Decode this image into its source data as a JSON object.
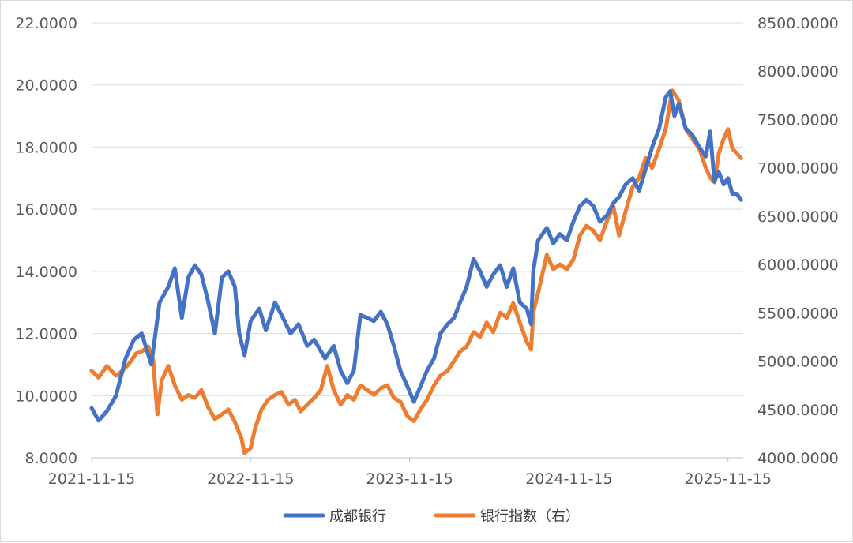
{
  "chart_data": {
    "type": "line",
    "title": "",
    "x_ticks": [
      "2021-11-15",
      "2022-11-15",
      "2023-11-15",
      "2024-11-15",
      "2025-11-15"
    ],
    "x_range": [
      "2021-11-15",
      "2025-12-20"
    ],
    "y_left": {
      "ticks": [
        "8.0000",
        "10.0000",
        "12.0000",
        "14.0000",
        "16.0000",
        "18.0000",
        "20.0000",
        "22.0000"
      ],
      "range": [
        8,
        22
      ]
    },
    "y_right": {
      "ticks": [
        "4000.0000",
        "4500.0000",
        "5000.0000",
        "5500.0000",
        "6000.0000",
        "6500.0000",
        "7000.0000",
        "7500.0000",
        "8000.0000",
        "8500.0000"
      ],
      "range": [
        4000,
        8500
      ]
    },
    "grid": "horizontal",
    "legend_position": "bottom",
    "series": [
      {
        "name": "成都银行",
        "axis": "left",
        "color": "#4472C4",
        "points": [
          [
            "2021-11-15",
            9.6
          ],
          [
            "2021-12-01",
            9.2
          ],
          [
            "2021-12-20",
            9.5
          ],
          [
            "2022-01-10",
            10.0
          ],
          [
            "2022-02-01",
            11.2
          ],
          [
            "2022-02-20",
            11.8
          ],
          [
            "2022-03-10",
            12.0
          ],
          [
            "2022-04-01",
            11.0
          ],
          [
            "2022-04-20",
            13.0
          ],
          [
            "2022-05-10",
            13.5
          ],
          [
            "2022-05-25",
            14.1
          ],
          [
            "2022-06-10",
            12.5
          ],
          [
            "2022-06-25",
            13.8
          ],
          [
            "2022-07-10",
            14.2
          ],
          [
            "2022-07-25",
            13.9
          ],
          [
            "2022-08-10",
            13.0
          ],
          [
            "2022-08-25",
            12.0
          ],
          [
            "2022-09-10",
            13.8
          ],
          [
            "2022-09-25",
            14.0
          ],
          [
            "2022-10-10",
            13.5
          ],
          [
            "2022-10-20",
            12.0
          ],
          [
            "2022-11-01",
            11.3
          ],
          [
            "2022-11-15",
            12.4
          ],
          [
            "2022-12-05",
            12.8
          ],
          [
            "2022-12-20",
            12.1
          ],
          [
            "2023-01-10",
            13.0
          ],
          [
            "2023-01-25",
            12.6
          ],
          [
            "2023-02-15",
            12.0
          ],
          [
            "2023-03-05",
            12.3
          ],
          [
            "2023-03-25",
            11.6
          ],
          [
            "2023-04-10",
            11.8
          ],
          [
            "2023-05-05",
            11.2
          ],
          [
            "2023-05-25",
            11.6
          ],
          [
            "2023-06-10",
            10.8
          ],
          [
            "2023-06-25",
            10.4
          ],
          [
            "2023-07-10",
            10.8
          ],
          [
            "2023-07-25",
            12.6
          ],
          [
            "2023-08-10",
            12.5
          ],
          [
            "2023-08-25",
            12.4
          ],
          [
            "2023-09-10",
            12.7
          ],
          [
            "2023-09-25",
            12.3
          ],
          [
            "2023-10-10",
            11.6
          ],
          [
            "2023-10-25",
            10.8
          ],
          [
            "2023-11-10",
            10.3
          ],
          [
            "2023-11-25",
            9.8
          ],
          [
            "2023-12-10",
            10.3
          ],
          [
            "2023-12-25",
            10.8
          ],
          [
            "2024-01-10",
            11.2
          ],
          [
            "2024-01-25",
            12.0
          ],
          [
            "2024-02-10",
            12.3
          ],
          [
            "2024-02-25",
            12.5
          ],
          [
            "2024-03-10",
            13.0
          ],
          [
            "2024-03-25",
            13.5
          ],
          [
            "2024-04-10",
            14.4
          ],
          [
            "2024-04-25",
            14.0
          ],
          [
            "2024-05-10",
            13.5
          ],
          [
            "2024-05-25",
            13.9
          ],
          [
            "2024-06-10",
            14.2
          ],
          [
            "2024-06-25",
            13.5
          ],
          [
            "2024-07-10",
            14.1
          ],
          [
            "2024-07-25",
            13.0
          ],
          [
            "2024-08-10",
            12.8
          ],
          [
            "2024-08-20",
            12.3
          ],
          [
            "2024-08-25",
            14.0
          ],
          [
            "2024-09-05",
            15.0
          ],
          [
            "2024-09-25",
            15.4
          ],
          [
            "2024-10-10",
            14.9
          ],
          [
            "2024-10-25",
            15.2
          ],
          [
            "2024-11-10",
            15.0
          ],
          [
            "2024-11-25",
            15.6
          ],
          [
            "2024-12-10",
            16.1
          ],
          [
            "2024-12-25",
            16.3
          ],
          [
            "2025-01-10",
            16.1
          ],
          [
            "2025-01-25",
            15.6
          ],
          [
            "2025-02-10",
            15.8
          ],
          [
            "2025-02-25",
            16.2
          ],
          [
            "2025-03-10",
            16.4
          ],
          [
            "2025-03-25",
            16.8
          ],
          [
            "2025-04-10",
            17.0
          ],
          [
            "2025-04-25",
            16.6
          ],
          [
            "2025-05-10",
            17.3
          ],
          [
            "2025-05-25",
            18.0
          ],
          [
            "2025-06-10",
            18.6
          ],
          [
            "2025-06-25",
            19.6
          ],
          [
            "2025-07-05",
            19.8
          ],
          [
            "2025-07-15",
            19.0
          ],
          [
            "2025-07-25",
            19.4
          ],
          [
            "2025-08-10",
            18.6
          ],
          [
            "2025-08-25",
            18.4
          ],
          [
            "2025-09-10",
            18.0
          ],
          [
            "2025-09-25",
            17.7
          ],
          [
            "2025-10-05",
            18.5
          ],
          [
            "2025-10-15",
            16.9
          ],
          [
            "2025-10-25",
            17.2
          ],
          [
            "2025-11-05",
            16.8
          ],
          [
            "2025-11-15",
            17.0
          ],
          [
            "2025-11-25",
            16.5
          ],
          [
            "2025-12-05",
            16.5
          ],
          [
            "2025-12-15",
            16.3
          ]
        ]
      },
      {
        "name": "银行指数（右）",
        "axis": "right",
        "color": "#ED7D31",
        "points": [
          [
            "2021-11-15",
            4900
          ],
          [
            "2021-12-01",
            4830
          ],
          [
            "2021-12-20",
            4950
          ],
          [
            "2022-01-10",
            4850
          ],
          [
            "2022-01-25",
            4900
          ],
          [
            "2022-02-10",
            4980
          ],
          [
            "2022-02-25",
            5080
          ],
          [
            "2022-03-10",
            5100
          ],
          [
            "2022-03-25",
            5150
          ],
          [
            "2022-04-05",
            5020
          ],
          [
            "2022-04-15",
            4450
          ],
          [
            "2022-04-25",
            4800
          ],
          [
            "2022-05-10",
            4950
          ],
          [
            "2022-05-25",
            4750
          ],
          [
            "2022-06-10",
            4600
          ],
          [
            "2022-06-25",
            4650
          ],
          [
            "2022-07-10",
            4620
          ],
          [
            "2022-07-25",
            4700
          ],
          [
            "2022-08-10",
            4520
          ],
          [
            "2022-08-25",
            4400
          ],
          [
            "2022-09-10",
            4450
          ],
          [
            "2022-09-25",
            4500
          ],
          [
            "2022-10-10",
            4370
          ],
          [
            "2022-10-25",
            4200
          ],
          [
            "2022-11-01",
            4050
          ],
          [
            "2022-11-15",
            4100
          ],
          [
            "2022-11-25",
            4300
          ],
          [
            "2022-12-10",
            4500
          ],
          [
            "2022-12-25",
            4600
          ],
          [
            "2023-01-10",
            4650
          ],
          [
            "2023-01-25",
            4680
          ],
          [
            "2023-02-10",
            4550
          ],
          [
            "2023-02-25",
            4600
          ],
          [
            "2023-03-10",
            4480
          ],
          [
            "2023-03-25",
            4550
          ],
          [
            "2023-04-10",
            4620
          ],
          [
            "2023-04-25",
            4700
          ],
          [
            "2023-05-10",
            4950
          ],
          [
            "2023-05-25",
            4700
          ],
          [
            "2023-06-10",
            4550
          ],
          [
            "2023-06-25",
            4650
          ],
          [
            "2023-07-10",
            4600
          ],
          [
            "2023-07-25",
            4750
          ],
          [
            "2023-08-10",
            4700
          ],
          [
            "2023-08-25",
            4650
          ],
          [
            "2023-09-10",
            4720
          ],
          [
            "2023-09-25",
            4750
          ],
          [
            "2023-10-10",
            4620
          ],
          [
            "2023-10-25",
            4580
          ],
          [
            "2023-11-10",
            4430
          ],
          [
            "2023-11-25",
            4380
          ],
          [
            "2023-12-10",
            4500
          ],
          [
            "2023-12-25",
            4600
          ],
          [
            "2024-01-10",
            4750
          ],
          [
            "2024-01-25",
            4850
          ],
          [
            "2024-02-10",
            4900
          ],
          [
            "2024-02-25",
            5000
          ],
          [
            "2024-03-10",
            5100
          ],
          [
            "2024-03-25",
            5150
          ],
          [
            "2024-04-10",
            5300
          ],
          [
            "2024-04-25",
            5250
          ],
          [
            "2024-05-10",
            5400
          ],
          [
            "2024-05-25",
            5300
          ],
          [
            "2024-06-10",
            5500
          ],
          [
            "2024-06-25",
            5450
          ],
          [
            "2024-07-10",
            5600
          ],
          [
            "2024-07-25",
            5400
          ],
          [
            "2024-08-10",
            5200
          ],
          [
            "2024-08-20",
            5120
          ],
          [
            "2024-08-25",
            5500
          ],
          [
            "2024-09-10",
            5800
          ],
          [
            "2024-09-25",
            6100
          ],
          [
            "2024-10-10",
            5950
          ],
          [
            "2024-10-25",
            6000
          ],
          [
            "2024-11-10",
            5950
          ],
          [
            "2024-11-25",
            6050
          ],
          [
            "2024-12-10",
            6300
          ],
          [
            "2024-12-25",
            6400
          ],
          [
            "2025-01-10",
            6350
          ],
          [
            "2025-01-25",
            6250
          ],
          [
            "2025-02-10",
            6450
          ],
          [
            "2025-02-25",
            6600
          ],
          [
            "2025-03-10",
            6300
          ],
          [
            "2025-03-25",
            6550
          ],
          [
            "2025-04-10",
            6800
          ],
          [
            "2025-04-25",
            6900
          ],
          [
            "2025-05-10",
            7100
          ],
          [
            "2025-05-25",
            7000
          ],
          [
            "2025-06-10",
            7200
          ],
          [
            "2025-06-25",
            7400
          ],
          [
            "2025-07-10",
            7800
          ],
          [
            "2025-07-25",
            7700
          ],
          [
            "2025-08-10",
            7400
          ],
          [
            "2025-08-25",
            7300
          ],
          [
            "2025-09-10",
            7200
          ],
          [
            "2025-09-25",
            7000
          ],
          [
            "2025-10-05",
            6900
          ],
          [
            "2025-10-15",
            6850
          ],
          [
            "2025-10-25",
            7150
          ],
          [
            "2025-11-05",
            7300
          ],
          [
            "2025-11-15",
            7400
          ],
          [
            "2025-11-25",
            7200
          ],
          [
            "2025-12-05",
            7150
          ],
          [
            "2025-12-15",
            7100
          ]
        ]
      }
    ]
  }
}
